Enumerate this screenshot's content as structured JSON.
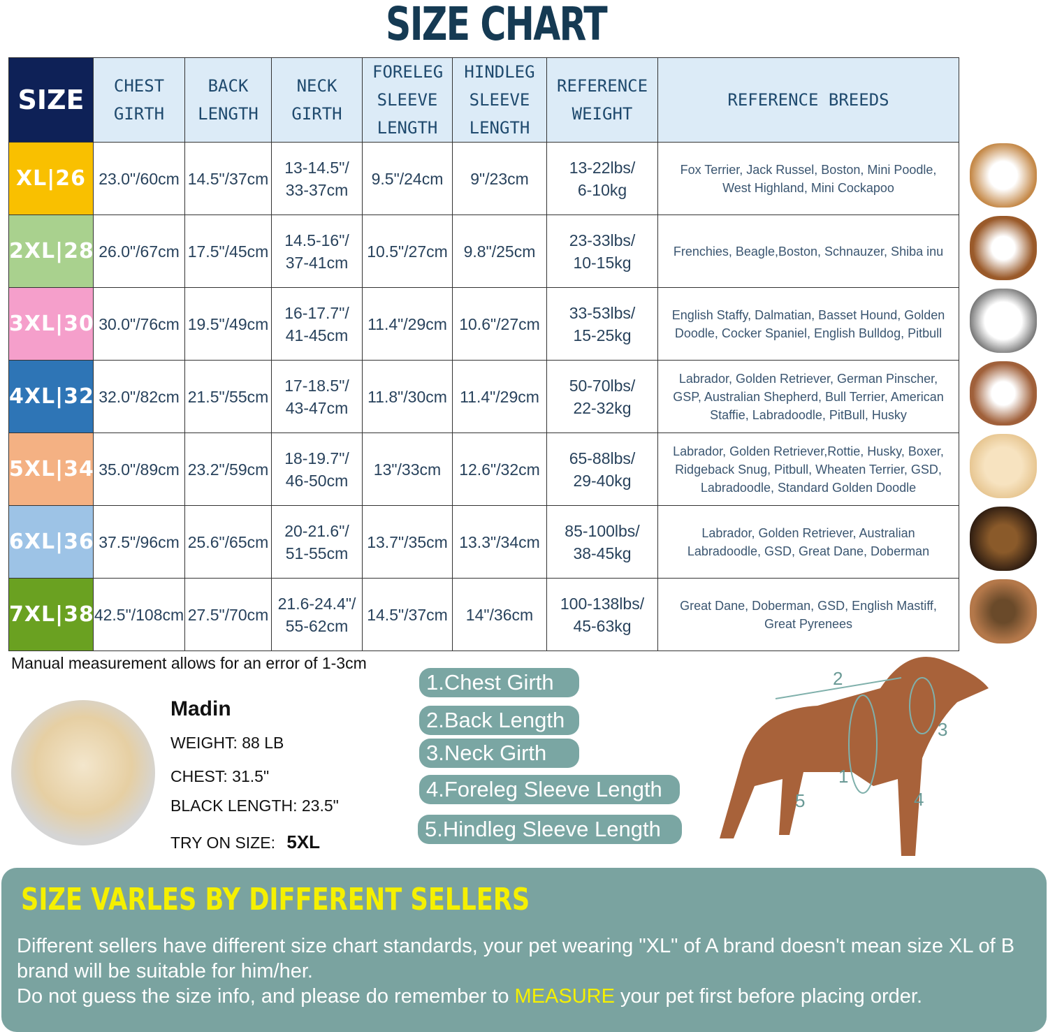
{
  "title": "SIZE CHART",
  "headers": [
    "SIZE",
    "CHEST GIRTH",
    "BACK LENGTH",
    "NECK GIRTH",
    "FORELEG SLEEVE LENGTH",
    "HINDLEG SLEEVE LENGTH",
    "REFERENCE WEIGHT",
    "REFERENCE BREEDS"
  ],
  "rows": [
    {
      "size": "XL|26",
      "color": "#f9c000",
      "chest": "23.0\"/60cm",
      "back": "14.5\"/37cm",
      "neck1": "13-14.5\"/",
      "neck2": "33-37cm",
      "fore": "9.5\"/24cm",
      "hind": "9\"/23cm",
      "w1": "13-22lbs/",
      "w2": "6-10kg",
      "breeds": "Fox Terrier, Jack Russel, Boston, Mini Poodle, West Highland, Mini Cockapoo"
    },
    {
      "size": "2XL|28",
      "color": "#a9d18e",
      "chest": "26.0\"/67cm",
      "back": "17.5\"/45cm",
      "neck1": "14.5-16\"/",
      "neck2": "37-41cm",
      "fore": "10.5\"/27cm",
      "hind": "9.8\"/25cm",
      "w1": "23-33lbs/",
      "w2": "10-15kg",
      "breeds": "Frenchies, Beagle,Boston, Schnauzer, Shiba inu"
    },
    {
      "size": "3XL|30",
      "color": "#f59fcb",
      "chest": "30.0\"/76cm",
      "back": "19.5\"/49cm",
      "neck1": "16-17.7\"/",
      "neck2": "41-45cm",
      "fore": "11.4\"/29cm",
      "hind": "10.6\"/27cm",
      "w1": "33-53lbs/",
      "w2": "15-25kg",
      "breeds": "English Staffy, Dalmatian, Basset Hound, Golden Doodle, Cocker Spaniel, English Bulldog, Pitbull"
    },
    {
      "size": "4XL|32",
      "color": "#2e75b6",
      "chest": "32.0\"/82cm",
      "back": "21.5\"/55cm",
      "neck1": "17-18.5\"/",
      "neck2": "43-47cm",
      "fore": "11.8\"/30cm",
      "hind": "11.4\"/29cm",
      "w1": "50-70lbs/",
      "w2": "22-32kg",
      "breeds": "Labrador, Golden Retriever, German Pinscher, GSP, Australian Shepherd, Bull Terrier, American Staffie, Labradoodle, PitBull, Husky"
    },
    {
      "size": "5XL|34",
      "color": "#f4b183",
      "chest": "35.0\"/89cm",
      "back": "23.2\"/59cm",
      "neck1": "18-19.7\"/",
      "neck2": "46-50cm",
      "fore": "13\"/33cm",
      "hind": "12.6\"/32cm",
      "w1": "65-88lbs/",
      "w2": "29-40kg",
      "breeds": "Labrador, Golden Retriever,Rottie, Husky, Boxer, Ridgeback Snug, Pitbull, Wheaten Terrier, GSD, Labradoodle,  Standard Golden Doodle"
    },
    {
      "size": "6XL|36",
      "color": "#9dc3e6",
      "chest": "37.5\"/96cm",
      "back": "25.6\"/65cm",
      "neck1": "20-21.6\"/",
      "neck2": "51-55cm",
      "fore": "13.7\"/35cm",
      "hind": "13.3\"/34cm",
      "w1": "85-100lbs/",
      "w2": "38-45kg",
      "breeds": "Labrador, Golden Retriever, Australian Labradoodle, GSD, Great Dane, Doberman"
    },
    {
      "size": "7XL|38",
      "color": "#6aa121",
      "chest": "42.5\"/108cm",
      "back": "27.5\"/70cm",
      "neck1": "21.6-24.4\"/",
      "neck2": "55-62cm",
      "fore": "14.5\"/37cm",
      "hind": "14\"/36cm",
      "w1": "100-138lbs/",
      "w2": "45-63kg",
      "breeds": "Great Dane, Doberman, GSD, English Mastiff, Great Pyrenees"
    }
  ],
  "note": "Manual measurement allows for an error of 1-3cm",
  "example": {
    "name": "Madin",
    "weight": "WEIGHT: 88 LB",
    "chest": "CHEST: 31.5\"",
    "length": "BLACK LENGTH: 23.5\"",
    "try_label": "TRY ON SIZE:",
    "try_size": "5XL"
  },
  "legend": [
    "1.Chest Girth",
    "2.Back Length",
    "3.Neck Girth",
    "4.Foreleg Sleeve Length",
    "5.Hindleg Sleeve Length"
  ],
  "diagram_labels": [
    "1",
    "2",
    "3",
    "4",
    "5"
  ],
  "panel": {
    "title": "SIZE VARLES BY DIFFERENT SELLERS",
    "line1": "Different sellers have different size chart standards, your pet wearing \"XL\" of A brand doesn't mean size XL of B brand will be suitable for him/her.",
    "line2a": "Do not guess the size info, and please do remember to ",
    "line2b": "MEASURE",
    "line2c": " your pet first before placing order."
  }
}
